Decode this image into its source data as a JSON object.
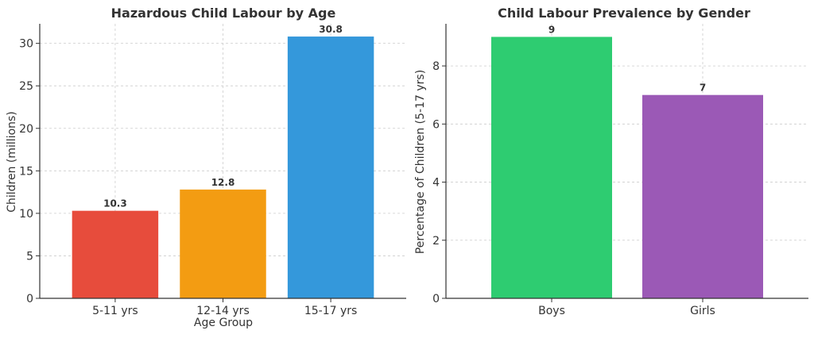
{
  "chart_data": [
    {
      "type": "bar",
      "title": "Hazardous Child Labour by Age",
      "xlabel": "Age Group",
      "ylabel": "Children (millions)",
      "categories": [
        "5-11 yrs",
        "12-14 yrs",
        "15-17 yrs"
      ],
      "values": [
        10.3,
        12.8,
        30.8
      ],
      "data_labels": [
        "10.3",
        "12.8",
        "30.8"
      ],
      "colors": [
        "#e74c3c",
        "#f39c12",
        "#3498db"
      ],
      "ylim": [
        0,
        32.3
      ],
      "yticks": [
        0,
        5,
        10,
        15,
        20,
        25,
        30
      ],
      "grid": true
    },
    {
      "type": "bar",
      "title": "Child Labour Prevalence by Gender",
      "xlabel": "",
      "ylabel": "Percentage of Children (5-17 yrs)",
      "categories": [
        "Boys",
        "Girls"
      ],
      "values": [
        9,
        7
      ],
      "data_labels": [
        "9",
        "7"
      ],
      "colors": [
        "#2ecc71",
        "#9b59b6"
      ],
      "ylim": [
        0,
        9.45
      ],
      "yticks": [
        0,
        2,
        4,
        6,
        8
      ],
      "grid": true
    }
  ]
}
